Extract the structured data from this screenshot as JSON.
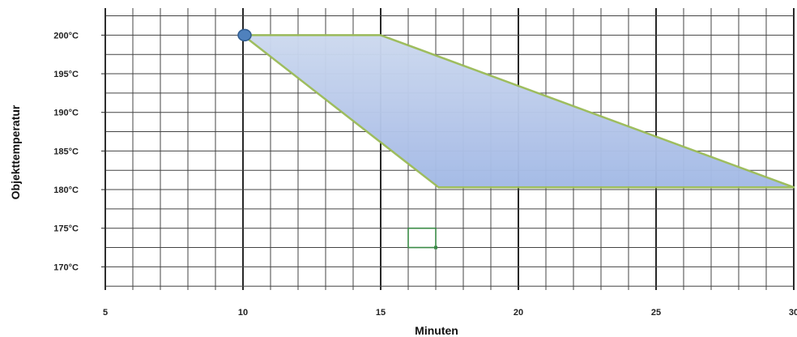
{
  "chart_data": {
    "type": "area",
    "xlabel": "Minuten",
    "ylabel": "Objekttemperatur",
    "xlim": [
      5,
      30
    ],
    "ylim": [
      167,
      203.5
    ],
    "x_ticks": [
      "5",
      "10",
      "15",
      "20",
      "25",
      "30"
    ],
    "y_ticks": [
      "170°C",
      "175°C",
      "180°C",
      "185°C",
      "190°C",
      "195°C",
      "200°C"
    ],
    "grid": true,
    "region": {
      "points": [
        {
          "x": 10,
          "y": 200
        },
        {
          "x": 15,
          "y": 200
        },
        {
          "x": 30,
          "y": 180.3
        },
        {
          "x": 17.1,
          "y": 180.3
        }
      ],
      "fill_top": "#cdd9ef",
      "fill_bottom": "#a3b9e6",
      "edge_color": "#9bbb59"
    },
    "marker": {
      "x": 10,
      "y": 200,
      "color": "#4f81bd"
    },
    "box": {
      "x0": 16,
      "x1": 17,
      "y0": 172.5,
      "y1": 175,
      "color": "#3a8a46"
    }
  }
}
